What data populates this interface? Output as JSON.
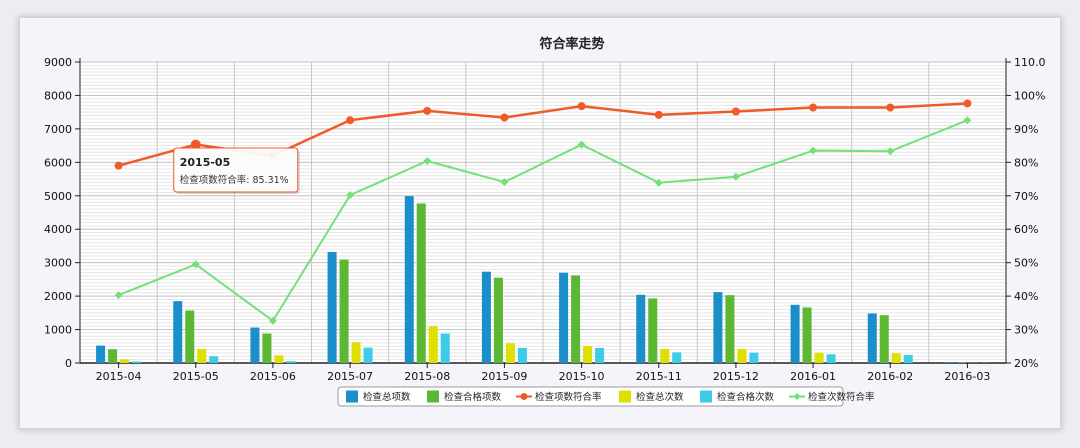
{
  "chart_data": {
    "type": "bar",
    "title": "符合率走势",
    "categories": [
      "2015-04",
      "2015-05",
      "2015-06",
      "2015-07",
      "2015-08",
      "2015-09",
      "2015-10",
      "2015-11",
      "2015-12",
      "2016-01",
      "2016-02",
      "2016-03"
    ],
    "y_left": {
      "min": 0,
      "max": 9000,
      "ticks": [
        "0",
        "1000",
        "2000",
        "3000",
        "4000",
        "5000",
        "6000",
        "7000",
        "8000",
        "9000"
      ]
    },
    "y_right": {
      "min": 20,
      "max": 110,
      "ticks": [
        "20%",
        "30%",
        "40%",
        "50%",
        "60%",
        "70%",
        "80%",
        "90%",
        "100%",
        "110.0"
      ]
    },
    "grid": true,
    "legend_position": "bottom",
    "series": [
      {
        "name": "检查总项数",
        "type": "bar",
        "color": "#1a8fc9",
        "axis": "left",
        "values": [
          520,
          1850,
          1060,
          3320,
          4990,
          2730,
          2700,
          2040,
          2120,
          1740,
          1480,
          20
        ]
      },
      {
        "name": "检查合格项数",
        "type": "bar",
        "color": "#5cb832",
        "axis": "left",
        "values": [
          410,
          1570,
          880,
          3090,
          4770,
          2550,
          2620,
          1930,
          2030,
          1660,
          1430,
          15
        ]
      },
      {
        "name": "检查项数符合率",
        "type": "line",
        "color": "#f05a28",
        "axis": "right",
        "values": [
          79,
          85.31,
          82,
          92.6,
          95.4,
          93.4,
          96.8,
          94.2,
          95.2,
          96.4,
          96.4,
          97.6
        ]
      },
      {
        "name": "检查总次数",
        "type": "bar",
        "color": "#dde000",
        "axis": "left",
        "values": [
          110,
          420,
          230,
          620,
          1100,
          590,
          510,
          420,
          420,
          310,
          290,
          5
        ]
      },
      {
        "name": "检查合格次数",
        "type": "bar",
        "color": "#3dcce8",
        "axis": "left",
        "values": [
          45,
          200,
          55,
          460,
          880,
          450,
          450,
          320,
          310,
          260,
          240,
          5
        ]
      },
      {
        "name": "检查次数符合率",
        "type": "line",
        "color": "#74e07a",
        "axis": "right",
        "values": [
          40.3,
          49.5,
          32.6,
          70.2,
          80.4,
          74.1,
          85.3,
          73.9,
          75.7,
          83.5,
          83.3,
          92.6
        ]
      }
    ],
    "tooltip": {
      "category": "2015-05",
      "text": "检查项数符合率: 85.31%"
    }
  }
}
